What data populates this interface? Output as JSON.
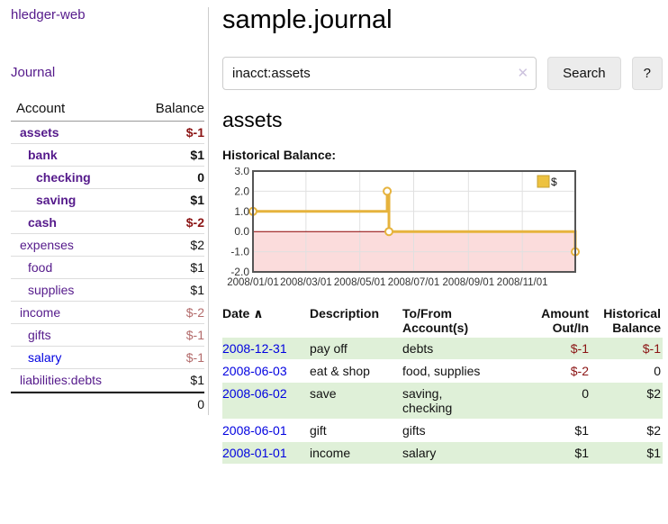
{
  "app": {
    "brand": "hledger-web",
    "nav_journal": "Journal"
  },
  "sidebar": {
    "header": {
      "account": "Account",
      "balance": "Balance"
    },
    "rows": [
      {
        "name": "assets",
        "balance": "$-1",
        "indent": 1,
        "bold": true,
        "neg": "strong"
      },
      {
        "name": "bank",
        "balance": "$1",
        "indent": 2,
        "bold": true,
        "neg": "none"
      },
      {
        "name": "checking",
        "balance": "0",
        "indent": 3,
        "bold": true,
        "neg": "none"
      },
      {
        "name": "saving",
        "balance": "$1",
        "indent": 3,
        "bold": true,
        "neg": "none"
      },
      {
        "name": "cash",
        "balance": "$-2",
        "indent": 2,
        "bold": true,
        "neg": "strong"
      },
      {
        "name": "expenses",
        "balance": "$2",
        "indent": 1,
        "bold": false,
        "neg": "none"
      },
      {
        "name": "food",
        "balance": "$1",
        "indent": 2,
        "bold": false,
        "neg": "none"
      },
      {
        "name": "supplies",
        "balance": "$1",
        "indent": 2,
        "bold": false,
        "neg": "none"
      },
      {
        "name": "income",
        "balance": "$-2",
        "indent": 1,
        "bold": false,
        "neg": "soft"
      },
      {
        "name": "gifts",
        "balance": "$-1",
        "indent": 2,
        "bold": false,
        "neg": "soft"
      },
      {
        "name": "salary",
        "balance": "$-1",
        "indent": 2,
        "bold": false,
        "neg": "soft",
        "blue": true
      },
      {
        "name": "liabilities:debts",
        "balance": "$1",
        "indent": 1,
        "bold": false,
        "neg": "none"
      }
    ],
    "total": "0"
  },
  "header": {
    "title": "sample.journal"
  },
  "search": {
    "value": "inacct:assets",
    "clear_icon": "✕",
    "button_label": "Search",
    "help_label": "?"
  },
  "account_page": {
    "heading": "assets",
    "chart_label": "Historical Balance:"
  },
  "chart_data": {
    "type": "line",
    "step": true,
    "title": "Historical Balance:",
    "series": [
      {
        "name": "$",
        "color": "#e6b33d",
        "points": [
          [
            "2008-01-01",
            1.0
          ],
          [
            "2008-06-01",
            2.0
          ],
          [
            "2008-06-03",
            0.0
          ],
          [
            "2008-12-31",
            -1.0
          ]
        ]
      }
    ],
    "x_range": [
      "2008-01-01",
      "2008-12-31"
    ],
    "x_ticks": [
      "2008/01/01",
      "2008/03/01",
      "2008/05/01",
      "2008/07/01",
      "2008/09/01",
      "2008/11/01"
    ],
    "y_ticks": [
      "3.0",
      "2.0",
      "1.0",
      "0.0",
      "-1.0",
      "-2.0"
    ],
    "ylim": [
      -2.0,
      3.0
    ],
    "legend": "$",
    "legend_position": "top-right",
    "grid": true,
    "negative_fill": "#fbdcdc",
    "zero_line_color": "#8b0000",
    "grid_color": "#e0e0e0",
    "border_color": "#555555"
  },
  "register": {
    "columns": {
      "date": "Date",
      "description": "Description",
      "accounts": "To/From Account(s)",
      "amount": "Amount Out/In",
      "balance": "Historical Balance"
    },
    "sort_indicator": "∧",
    "rows": [
      {
        "date": "2008-12-31",
        "description": "pay off",
        "accounts": "debts",
        "amount": "$-1",
        "balance": "$-1",
        "amount_neg": true,
        "balance_neg": true
      },
      {
        "date": "2008-06-03",
        "description": "eat & shop",
        "accounts": "food, supplies",
        "amount": "$-2",
        "balance": "0",
        "amount_neg": true,
        "balance_neg": false
      },
      {
        "date": "2008-06-02",
        "description": "save",
        "accounts": "saving,\nchecking",
        "amount": "0",
        "balance": "$2",
        "amount_neg": false,
        "balance_neg": false
      },
      {
        "date": "2008-06-01",
        "description": "gift",
        "accounts": "gifts",
        "amount": "$1",
        "balance": "$2",
        "amount_neg": false,
        "balance_neg": false
      },
      {
        "date": "2008-01-01",
        "description": "income",
        "accounts": "salary",
        "amount": "$1",
        "balance": "$1",
        "amount_neg": false,
        "balance_neg": false
      }
    ]
  },
  "colors": {
    "link_purple": "#551a8b",
    "link_blue": "#0000e0",
    "negative_strong": "#8b1414",
    "negative_soft": "#b36b6b",
    "row_green": "#dff0d8",
    "accent_yellow": "#edc240"
  }
}
